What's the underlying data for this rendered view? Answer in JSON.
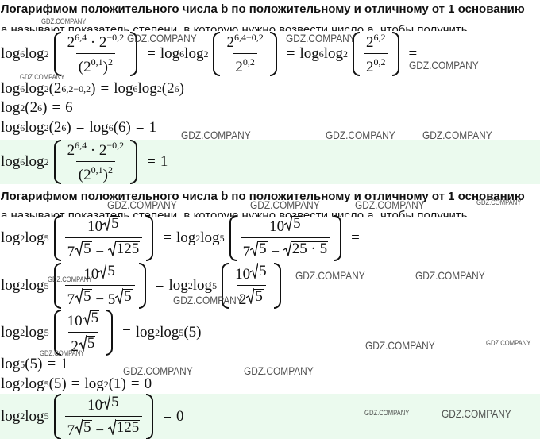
{
  "sections": [
    {
      "heading": "Логарифмом положительного числа b по положительному и отличному от 1 основанию",
      "clipped": "a называют показатель степени, в которую нужно возвести число a, чтобы получить",
      "lines": [
        {
          "parts": [
            "log",
            {
              "sub": "6"
            },
            "log",
            {
              "sub": "2"
            },
            {
              "br": [
                {
                  "frac": {
                    "num": [
                      "2",
                      {
                        "sup": "6,4"
                      },
                      " · 2",
                      {
                        "sup": "−0,2"
                      }
                    ],
                    "den": [
                      "(2",
                      {
                        "sup": "0,1"
                      },
                      ")",
                      {
                        "sup": "2"
                      }
                    ]
                  }
                }
              ]
            },
            "=",
            "log",
            {
              "sub": "6"
            },
            "log",
            {
              "sub": "2"
            },
            {
              "br": [
                {
                  "frac": {
                    "num": [
                      "2",
                      {
                        "sup": "6,4−0,2"
                      }
                    ],
                    "den": [
                      "2",
                      {
                        "sup": "0,2"
                      }
                    ]
                  }
                }
              ]
            },
            "=",
            "log",
            {
              "sub": "6"
            },
            "log",
            {
              "sub": "2"
            },
            {
              "br": [
                {
                  "frac": {
                    "num": [
                      "2",
                      {
                        "sup": "6,2"
                      }
                    ],
                    "den": [
                      "2",
                      {
                        "sup": "0,2"
                      }
                    ]
                  }
                }
              ]
            },
            "="
          ]
        },
        {
          "parts": [
            "log",
            {
              "sub": "6"
            },
            "log",
            {
              "sub": "2"
            },
            "(2",
            {
              "sup": "6,2−0,2"
            },
            ")",
            "=",
            "log",
            {
              "sub": "6"
            },
            "log",
            {
              "sub": "2"
            },
            "(2",
            {
              "sup": "6"
            },
            ")"
          ]
        },
        {
          "parts": [
            "log",
            {
              "sub": "2"
            },
            "(2",
            {
              "sup": "6"
            },
            ")",
            "=",
            "6"
          ]
        },
        {
          "parts": [
            "log",
            {
              "sub": "6"
            },
            "log",
            {
              "sub": "2"
            },
            "(2",
            {
              "sup": "6"
            },
            ")",
            "=",
            "log",
            {
              "sub": "6"
            },
            "(6)",
            "=",
            "1"
          ]
        },
        {
          "highlight": true,
          "parts": [
            "log",
            {
              "sub": "6"
            },
            "log",
            {
              "sub": "2"
            },
            {
              "br": [
                {
                  "frac": {
                    "num": [
                      "2",
                      {
                        "sup": "6,4"
                      },
                      " · 2",
                      {
                        "sup": "−0,2"
                      }
                    ],
                    "den": [
                      "(2",
                      {
                        "sup": "0,1"
                      },
                      ")",
                      {
                        "sup": "2"
                      }
                    ]
                  }
                }
              ]
            },
            "=",
            "1"
          ]
        }
      ]
    },
    {
      "heading": "Логарифмом положительного числа b по положительному и отличному от 1 основанию",
      "clipped": "a называют показатель степени, в которую нужно возвести число a, чтобы получить",
      "lines": [
        {
          "parts": [
            "log",
            {
              "sub": "2"
            },
            "log",
            {
              "sub": "5"
            },
            {
              "br": [
                {
                  "frac": {
                    "num": [
                      "10",
                      {
                        "sqrt": "5"
                      }
                    ],
                    "den": [
                      "7",
                      {
                        "sqrt": "5"
                      },
                      " − ",
                      {
                        "sqrt": "125"
                      }
                    ]
                  }
                }
              ]
            },
            "=",
            "log",
            {
              "sub": "2"
            },
            "log",
            {
              "sub": "5"
            },
            {
              "br": [
                {
                  "frac": {
                    "num": [
                      "10",
                      {
                        "sqrt": "5"
                      }
                    ],
                    "den": [
                      "7",
                      {
                        "sqrt": "5"
                      },
                      " − ",
                      {
                        "sqrt": "25 · 5"
                      }
                    ]
                  }
                }
              ]
            },
            "="
          ]
        },
        {
          "parts": [
            "log",
            {
              "sub": "2"
            },
            "log",
            {
              "sub": "5"
            },
            {
              "br": [
                {
                  "frac": {
                    "num": [
                      "10",
                      {
                        "sqrt": "5"
                      }
                    ],
                    "den": [
                      "7",
                      {
                        "sqrt": "5"
                      },
                      " − 5",
                      {
                        "sqrt": "5"
                      }
                    ]
                  }
                }
              ]
            },
            "=",
            "log",
            {
              "sub": "2"
            },
            "log",
            {
              "sub": "5"
            },
            {
              "br": [
                {
                  "frac": {
                    "num": [
                      "10",
                      {
                        "sqrt": "5"
                      }
                    ],
                    "den": [
                      "2",
                      {
                        "sqrt": "5"
                      }
                    ]
                  }
                }
              ]
            }
          ]
        },
        {
          "parts": [
            "log",
            {
              "sub": "2"
            },
            "log",
            {
              "sub": "5"
            },
            {
              "br": [
                {
                  "frac": {
                    "num": [
                      "10",
                      {
                        "sqrt": "5"
                      }
                    ],
                    "den": [
                      "2",
                      {
                        "sqrt": "5"
                      }
                    ]
                  }
                }
              ]
            },
            "=",
            "log",
            {
              "sub": "2"
            },
            "log",
            {
              "sub": "5"
            },
            "(5)"
          ]
        },
        {
          "parts": [
            "log",
            {
              "sub": "5"
            },
            "(5)",
            "=",
            "1"
          ]
        },
        {
          "parts": [
            "log",
            {
              "sub": "2"
            },
            "log",
            {
              "sub": "5"
            },
            "(5)",
            "=",
            "log",
            {
              "sub": "2"
            },
            "(1)",
            "=",
            "0"
          ]
        },
        {
          "highlight": true,
          "parts": [
            "log",
            {
              "sub": "2"
            },
            "log",
            {
              "sub": "5"
            },
            {
              "br": [
                {
                  "frac": {
                    "num": [
                      "10",
                      {
                        "sqrt": "5"
                      }
                    ],
                    "den": [
                      "7",
                      {
                        "sqrt": "5"
                      },
                      " − ",
                      {
                        "sqrt": "125"
                      }
                    ]
                  }
                }
              ]
            },
            "=",
            "0"
          ]
        }
      ]
    }
  ],
  "watermarks": [
    "GDZ.COMPANY",
    "GDZ.COMPANY",
    "GDZ.COMPANY",
    "GDZ.COMPANY",
    "GDZ.COMPANY",
    "GDZ.COMPANY",
    "GDZ.COMPANY",
    "GDZ.COMPANY",
    "GDZ.COMPANY",
    "GDZ.COMPANY",
    "GDZ.COMPANY",
    "GDZ.COMPANY",
    "GDZ.COMPANY",
    "GDZ.COMPANY",
    "GDZ.COMPANY",
    "GDZ.COMPANY",
    "GDZ.COMPANY",
    "GDZ.COMPANY",
    "GDZ.COMPANY",
    "GDZ.COMPANY",
    "GDZ.COMPANY",
    "GDZ.COMPANY",
    "GDZ.COMPANY"
  ]
}
